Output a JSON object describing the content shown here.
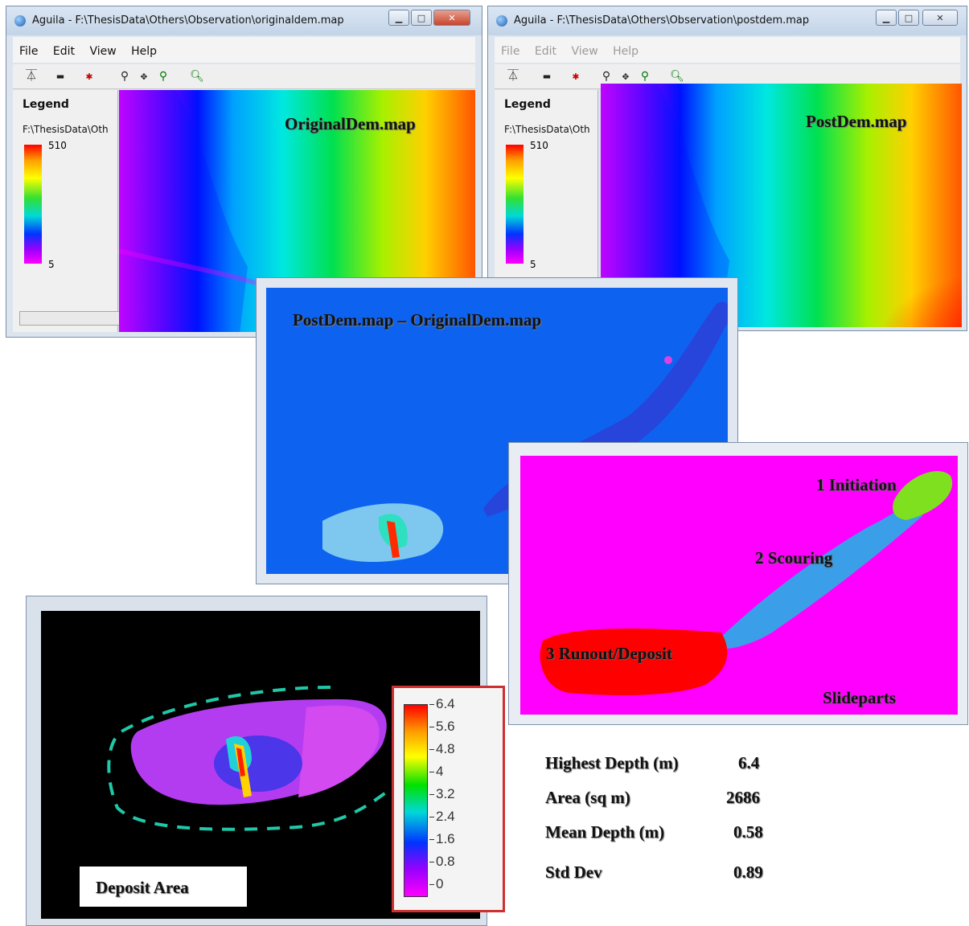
{
  "window_left": {
    "title": "Aguila - F:\\ThesisData\\Others\\Observation\\originaldem.map",
    "menu": [
      "File",
      "Edit",
      "View",
      "Help"
    ],
    "legend_title": "Legend",
    "legend_path": "F:\\ThesisData\\Oth",
    "legend_max": "510",
    "legend_min": "5",
    "map_title": "OriginalDem.map"
  },
  "window_right": {
    "title": "Aguila - F:\\ThesisData\\Others\\Observation\\postdem.map",
    "menu": [
      "File",
      "Edit",
      "View",
      "Help"
    ],
    "legend_title": "Legend",
    "legend_path": "F:\\ThesisData\\Oth",
    "legend_max": "510",
    "legend_min": "5",
    "map_title": "PostDem.map"
  },
  "difference_map": {
    "title": "PostDem.map – OriginalDem.map"
  },
  "slideparts": {
    "labels": [
      "1 Initiation",
      "2 Scouring",
      "3 Runout/Deposit"
    ],
    "title": "Slideparts"
  },
  "deposit": {
    "label": "Deposit Area",
    "legend_ticks": [
      "6.4",
      "5.6",
      "4.8",
      "4",
      "3.2",
      "2.4",
      "1.6",
      "0.8",
      "0"
    ]
  },
  "stats": [
    {
      "label": "Highest Depth  (m)",
      "value": "6.4"
    },
    {
      "label": "Area (sq m)",
      "value": "2686"
    },
    {
      "label": "Mean Depth  (m)",
      "value": "0.58"
    },
    {
      "label": "Std Dev",
      "value": "0.89"
    }
  ]
}
